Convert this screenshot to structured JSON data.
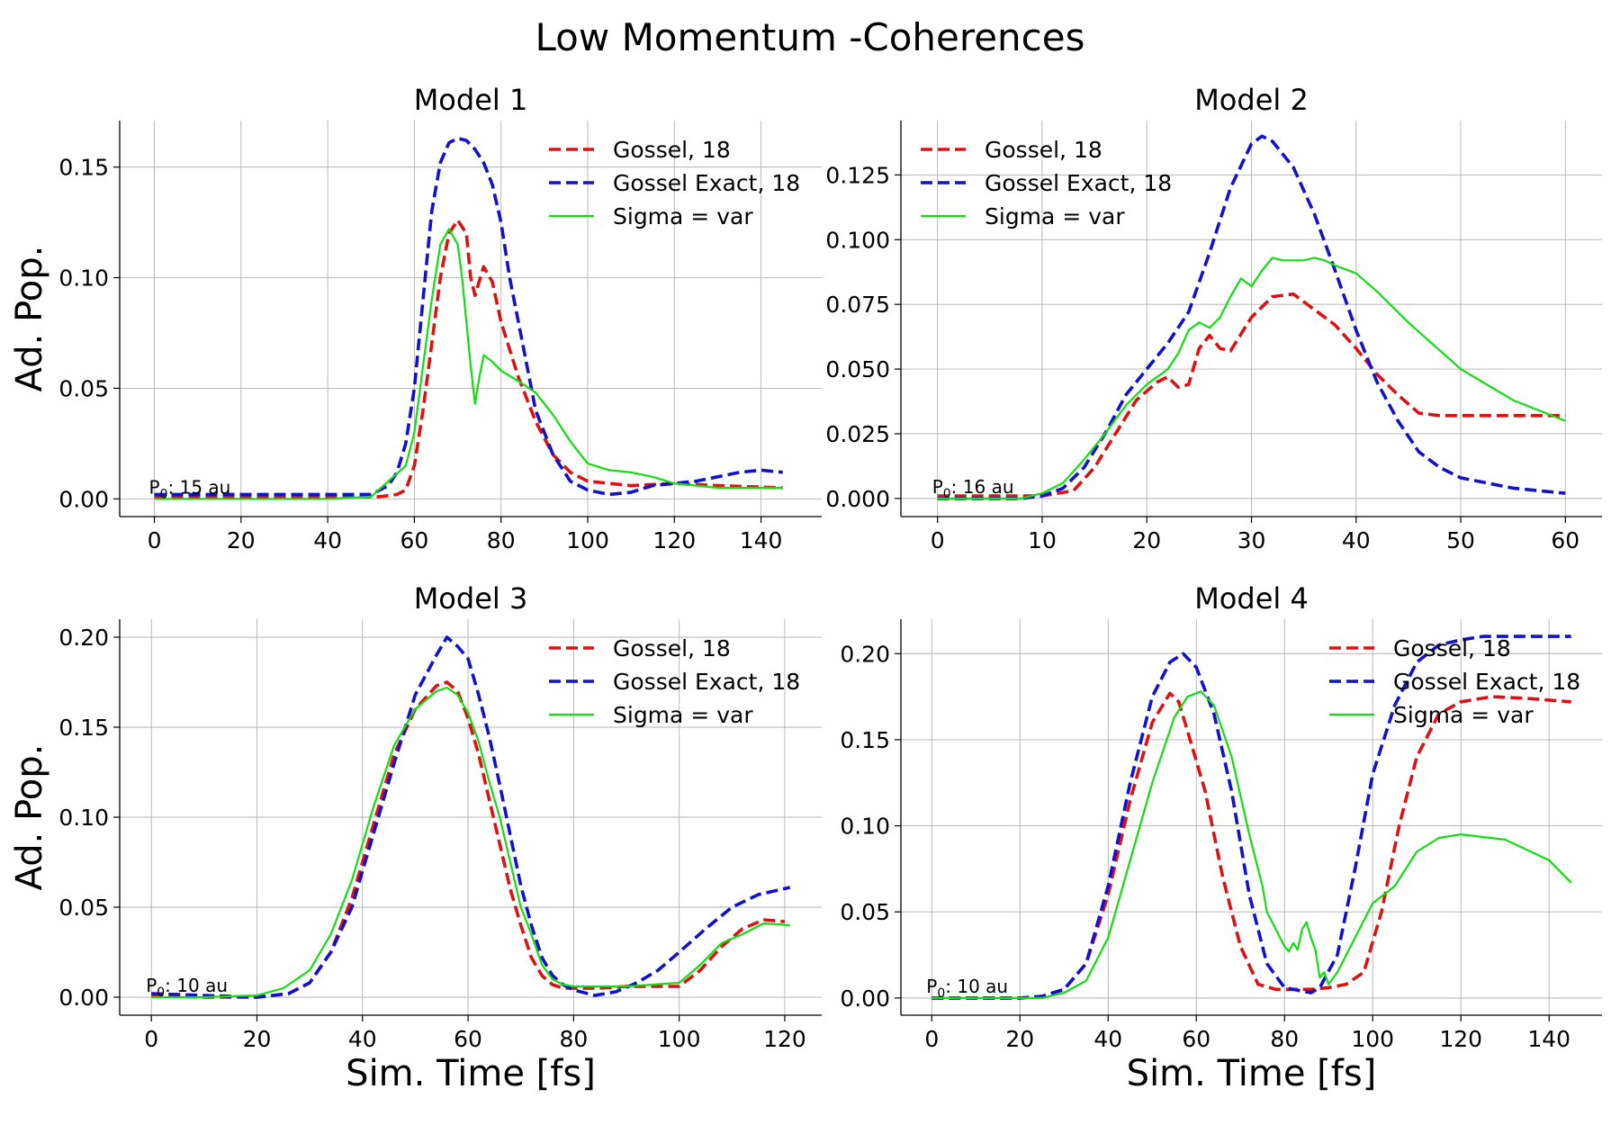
{
  "suptitle": "Low Momentum -Coherences",
  "colors": {
    "red": "#dd1111",
    "blue": "#1111cc",
    "green": "#11dd11"
  },
  "chart_data": [
    {
      "type": "line",
      "title": "Model 1",
      "xlabel": "",
      "ylabel": "Ad. Pop.",
      "xlim": [
        -8,
        154
      ],
      "ylim": [
        -0.008,
        0.171
      ],
      "xticks": [
        0,
        20,
        40,
        60,
        80,
        100,
        120,
        140
      ],
      "yticks": [
        0.0,
        0.05,
        0.1,
        0.15
      ],
      "ytick_labels": [
        "0.00",
        "0.05",
        "0.10",
        "0.15"
      ],
      "annotation": {
        "base": "P",
        "sub": "0",
        "text": ": 15 au"
      },
      "legend": {
        "placement": "upper right"
      },
      "grid": true,
      "series": [
        {
          "name": "Gossel, 18",
          "color": "#dd1111",
          "style": "dashed",
          "x": [
            0,
            20,
            40,
            52,
            56,
            58,
            60,
            62,
            64,
            66,
            68,
            70,
            72,
            73,
            74,
            76,
            78,
            80,
            84,
            88,
            92,
            96,
            100,
            105,
            110,
            120,
            130,
            145
          ],
          "y": [
            0.001,
            0.001,
            0.001,
            0.001,
            0.002,
            0.004,
            0.015,
            0.04,
            0.07,
            0.1,
            0.12,
            0.126,
            0.12,
            0.1,
            0.092,
            0.105,
            0.098,
            0.08,
            0.055,
            0.035,
            0.02,
            0.012,
            0.008,
            0.007,
            0.006,
            0.007,
            0.006,
            0.005
          ]
        },
        {
          "name": "Gossel Exact, 18",
          "color": "#1111cc",
          "style": "dashed",
          "x": [
            0,
            20,
            40,
            50,
            54,
            56,
            58,
            60,
            62,
            64,
            66,
            68,
            70,
            72,
            74,
            76,
            78,
            80,
            82,
            84,
            86,
            88,
            92,
            96,
            100,
            105,
            110,
            115,
            120,
            125,
            130,
            135,
            140,
            145
          ],
          "y": [
            0.002,
            0.002,
            0.002,
            0.002,
            0.006,
            0.012,
            0.025,
            0.05,
            0.09,
            0.13,
            0.152,
            0.161,
            0.163,
            0.162,
            0.158,
            0.152,
            0.142,
            0.125,
            0.1,
            0.08,
            0.06,
            0.04,
            0.02,
            0.008,
            0.004,
            0.002,
            0.003,
            0.006,
            0.007,
            0.008,
            0.01,
            0.012,
            0.013,
            0.012
          ]
        },
        {
          "name": "Sigma = var",
          "color": "#11dd11",
          "style": "solid",
          "x": [
            0,
            20,
            40,
            50,
            54,
            58,
            60,
            62,
            64,
            66,
            68,
            70,
            71,
            72,
            73,
            74,
            75,
            76,
            78,
            80,
            85,
            88,
            92,
            96,
            100,
            105,
            110,
            115,
            120,
            130,
            140,
            145
          ],
          "y": [
            0.0,
            0.0,
            0.0,
            0.001,
            0.008,
            0.015,
            0.03,
            0.06,
            0.09,
            0.115,
            0.122,
            0.115,
            0.1,
            0.08,
            0.06,
            0.043,
            0.055,
            0.065,
            0.062,
            0.058,
            0.052,
            0.048,
            0.038,
            0.026,
            0.016,
            0.013,
            0.012,
            0.01,
            0.007,
            0.005,
            0.005,
            0.005
          ]
        }
      ]
    },
    {
      "type": "line",
      "title": "Model 2",
      "xlabel": "",
      "ylabel": "",
      "xlim": [
        -3.5,
        63.5
      ],
      "ylim": [
        -0.007,
        0.146
      ],
      "xticks": [
        0,
        10,
        20,
        30,
        40,
        50,
        60
      ],
      "yticks": [
        0.0,
        0.025,
        0.05,
        0.075,
        0.1,
        0.125
      ],
      "ytick_labels": [
        "0.000",
        "0.025",
        "0.050",
        "0.075",
        "0.100",
        "0.125"
      ],
      "annotation": {
        "base": "P",
        "sub": "0",
        "text": ": 16 au"
      },
      "legend": {
        "placement": "upper left"
      },
      "grid": true,
      "series": [
        {
          "name": "Gossel, 18",
          "color": "#dd1111",
          "style": "dashed",
          "x": [
            0,
            10,
            13,
            15,
            17,
            19,
            21,
            22,
            23,
            24,
            25,
            26,
            27,
            28,
            30,
            32,
            34,
            36,
            38,
            40,
            42,
            44,
            46,
            48,
            50,
            55,
            60
          ],
          "y": [
            0.001,
            0.001,
            0.003,
            0.012,
            0.025,
            0.038,
            0.045,
            0.047,
            0.043,
            0.044,
            0.058,
            0.063,
            0.058,
            0.057,
            0.07,
            0.078,
            0.079,
            0.073,
            0.067,
            0.058,
            0.048,
            0.04,
            0.033,
            0.032,
            0.032,
            0.032,
            0.032
          ]
        },
        {
          "name": "Gossel Exact, 18",
          "color": "#1111cc",
          "style": "dashed",
          "x": [
            0,
            8,
            10,
            12,
            14,
            16,
            18,
            20,
            22,
            24,
            26,
            28,
            30,
            31,
            32,
            34,
            36,
            38,
            40,
            42,
            44,
            46,
            48,
            50,
            55,
            60
          ],
          "y": [
            0.0,
            0.0,
            0.001,
            0.004,
            0.012,
            0.025,
            0.04,
            0.05,
            0.06,
            0.072,
            0.095,
            0.12,
            0.137,
            0.14,
            0.138,
            0.128,
            0.11,
            0.088,
            0.065,
            0.045,
            0.03,
            0.018,
            0.012,
            0.008,
            0.004,
            0.002
          ]
        },
        {
          "name": "Sigma = var",
          "color": "#11dd11",
          "style": "solid",
          "x": [
            0,
            8,
            10,
            12,
            14,
            16,
            18,
            20,
            22,
            23,
            24,
            25,
            26,
            27,
            28,
            29,
            30,
            31,
            32,
            33,
            34,
            35,
            36,
            37,
            38,
            40,
            42,
            45,
            50,
            55,
            60
          ],
          "y": [
            0.0,
            0.0,
            0.002,
            0.006,
            0.015,
            0.025,
            0.036,
            0.044,
            0.05,
            0.056,
            0.065,
            0.068,
            0.066,
            0.07,
            0.078,
            0.085,
            0.082,
            0.088,
            0.093,
            0.092,
            0.092,
            0.092,
            0.093,
            0.092,
            0.09,
            0.087,
            0.08,
            0.068,
            0.05,
            0.038,
            0.03
          ]
        }
      ]
    },
    {
      "type": "line",
      "title": "Model 3",
      "xlabel": "Sim. Time [fs]",
      "ylabel": "Ad. Pop.",
      "xlim": [
        -6,
        127
      ],
      "ylim": [
        -0.01,
        0.21
      ],
      "xticks": [
        0,
        20,
        40,
        60,
        80,
        100,
        120
      ],
      "yticks": [
        0.0,
        0.05,
        0.1,
        0.15,
        0.2
      ],
      "ytick_labels": [
        "0.00",
        "0.05",
        "0.10",
        "0.15",
        "0.20"
      ],
      "annotation": {
        "base": "P",
        "sub": "0",
        "text": ": 10 au"
      },
      "legend": {
        "placement": "upper right"
      },
      "grid": true,
      "series": [
        {
          "name": "Gossel, 18",
          "color": "#dd1111",
          "style": "dashed",
          "x": [
            0,
            10,
            20,
            26,
            30,
            34,
            38,
            42,
            46,
            50,
            54,
            56,
            58,
            60,
            62,
            64,
            66,
            68,
            70,
            72,
            74,
            76,
            78,
            80,
            85,
            90,
            95,
            100,
            104,
            108,
            112,
            116,
            120
          ],
          "y": [
            0.001,
            0.0,
            0.0,
            0.002,
            0.008,
            0.025,
            0.055,
            0.095,
            0.135,
            0.16,
            0.173,
            0.175,
            0.17,
            0.155,
            0.135,
            0.11,
            0.085,
            0.06,
            0.04,
            0.022,
            0.012,
            0.007,
            0.005,
            0.005,
            0.005,
            0.006,
            0.006,
            0.006,
            0.015,
            0.028,
            0.038,
            0.043,
            0.042
          ]
        },
        {
          "name": "Gossel Exact, 18",
          "color": "#1111cc",
          "style": "dashed",
          "x": [
            0,
            10,
            20,
            26,
            30,
            34,
            38,
            42,
            46,
            50,
            54,
            56,
            58,
            60,
            62,
            64,
            66,
            68,
            70,
            72,
            74,
            76,
            78,
            80,
            84,
            88,
            92,
            96,
            100,
            105,
            110,
            115,
            121
          ],
          "y": [
            0.002,
            0.001,
            0.0,
            0.002,
            0.008,
            0.025,
            0.05,
            0.09,
            0.13,
            0.168,
            0.19,
            0.2,
            0.195,
            0.188,
            0.168,
            0.145,
            0.118,
            0.09,
            0.062,
            0.04,
            0.022,
            0.012,
            0.007,
            0.004,
            0.001,
            0.003,
            0.008,
            0.015,
            0.025,
            0.038,
            0.05,
            0.057,
            0.061
          ]
        },
        {
          "name": "Sigma = var",
          "color": "#11dd11",
          "style": "solid",
          "x": [
            0,
            10,
            20,
            25,
            30,
            34,
            38,
            42,
            46,
            50,
            54,
            56,
            58,
            60,
            62,
            64,
            66,
            68,
            70,
            72,
            74,
            76,
            78,
            80,
            85,
            90,
            95,
            100,
            104,
            108,
            112,
            116,
            121
          ],
          "y": [
            0.0,
            0.0,
            0.001,
            0.005,
            0.015,
            0.035,
            0.065,
            0.105,
            0.14,
            0.16,
            0.17,
            0.172,
            0.168,
            0.158,
            0.142,
            0.12,
            0.1,
            0.075,
            0.05,
            0.035,
            0.018,
            0.01,
            0.007,
            0.006,
            0.006,
            0.006,
            0.007,
            0.008,
            0.018,
            0.03,
            0.035,
            0.041,
            0.04
          ]
        }
      ]
    },
    {
      "type": "line",
      "title": "Model 4",
      "xlabel": "Sim. Time [fs]",
      "ylabel": "",
      "xlim": [
        -7,
        152
      ],
      "ylim": [
        -0.01,
        0.22
      ],
      "xticks": [
        0,
        20,
        40,
        60,
        80,
        100,
        120,
        140
      ],
      "yticks": [
        0.0,
        0.05,
        0.1,
        0.15,
        0.2
      ],
      "ytick_labels": [
        "0.00",
        "0.05",
        "0.10",
        "0.15",
        "0.20"
      ],
      "annotation": {
        "base": "P",
        "sub": "0",
        "text": ": 10 au"
      },
      "legend": {
        "placement": "upper right"
      },
      "grid": true,
      "series": [
        {
          "name": "Gossel, 18",
          "color": "#dd1111",
          "style": "dashed",
          "x": [
            0,
            10,
            20,
            25,
            30,
            35,
            40,
            45,
            50,
            54,
            56,
            58,
            62,
            66,
            70,
            74,
            78,
            82,
            86,
            90,
            94,
            98,
            102,
            106,
            110,
            115,
            120,
            127,
            135,
            145
          ],
          "y": [
            0.0,
            0.0,
            0.0,
            0.001,
            0.005,
            0.02,
            0.06,
            0.115,
            0.16,
            0.177,
            0.172,
            0.155,
            0.12,
            0.07,
            0.03,
            0.008,
            0.005,
            0.005,
            0.005,
            0.006,
            0.008,
            0.015,
            0.05,
            0.1,
            0.14,
            0.165,
            0.172,
            0.175,
            0.174,
            0.172
          ]
        },
        {
          "name": "Gossel Exact, 18",
          "color": "#1111cc",
          "style": "dashed",
          "x": [
            0,
            10,
            20,
            25,
            30,
            35,
            40,
            45,
            50,
            54,
            57,
            60,
            64,
            68,
            72,
            76,
            80,
            84,
            86,
            88,
            92,
            96,
            100,
            105,
            110,
            115,
            120,
            125,
            130,
            135,
            145
          ],
          "y": [
            0.0,
            0.0,
            0.0,
            0.001,
            0.005,
            0.02,
            0.065,
            0.125,
            0.175,
            0.195,
            0.2,
            0.192,
            0.165,
            0.12,
            0.06,
            0.02,
            0.006,
            0.004,
            0.003,
            0.006,
            0.025,
            0.075,
            0.13,
            0.17,
            0.195,
            0.205,
            0.208,
            0.21,
            0.21,
            0.21,
            0.21
          ]
        },
        {
          "name": "Sigma = var",
          "color": "#11dd11",
          "style": "solid",
          "x": [
            0,
            10,
            20,
            25,
            30,
            35,
            40,
            45,
            50,
            55,
            58,
            61,
            64,
            68,
            72,
            75,
            76,
            78,
            80,
            81,
            82,
            83,
            84,
            85,
            86,
            87,
            88,
            89,
            90,
            92,
            96,
            100,
            105,
            110,
            115,
            120,
            130,
            140,
            145
          ],
          "y": [
            0.0,
            0.0,
            0.0,
            0.0,
            0.003,
            0.01,
            0.035,
            0.08,
            0.125,
            0.163,
            0.175,
            0.178,
            0.17,
            0.14,
            0.095,
            0.065,
            0.05,
            0.04,
            0.03,
            0.027,
            0.032,
            0.028,
            0.04,
            0.044,
            0.035,
            0.028,
            0.012,
            0.015,
            0.008,
            0.015,
            0.035,
            0.055,
            0.065,
            0.085,
            0.093,
            0.095,
            0.092,
            0.08,
            0.067
          ]
        }
      ]
    }
  ]
}
